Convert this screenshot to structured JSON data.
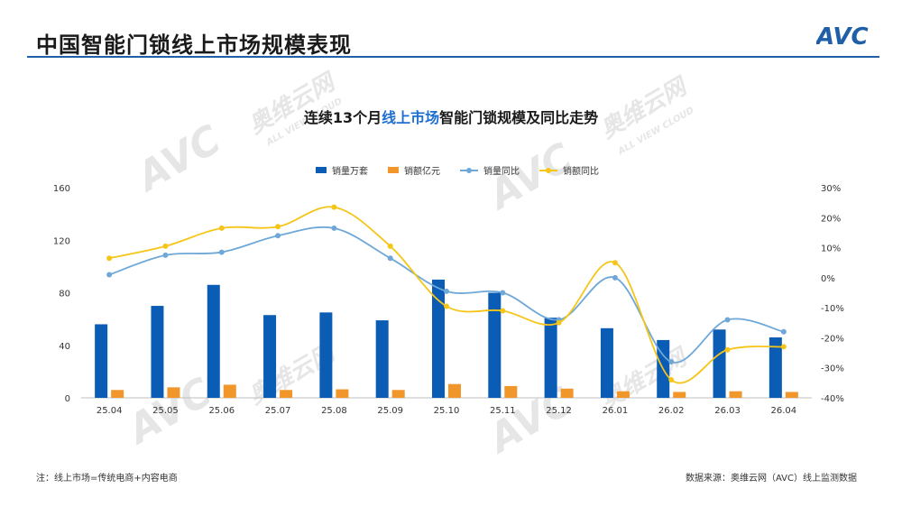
{
  "header": {
    "title": "中国智能门锁线上市场规模表现",
    "logo_text": "AVC"
  },
  "watermark": {
    "brand": "奥维云网",
    "latin": "ALL VIEW CLOUD",
    "logo": "AVC"
  },
  "chart_title": {
    "prefix": "连续13个月",
    "highlight": "线上市场",
    "suffix": "智能门锁规模及同比走势"
  },
  "footnote": "注：线上市场=传统电商+内容电商",
  "source": "数据来源：奥维云网（AVC）线上监测数据",
  "colors": {
    "bar1": "#0b5cb5",
    "bar2": "#f0962a",
    "line1": "#6fa8d8",
    "line2": "#f5c518",
    "accent": "#1f5fa8"
  },
  "chart_data": {
    "type": "bar",
    "categories": [
      "25.04",
      "25.05",
      "25.06",
      "25.07",
      "25.08",
      "25.09",
      "25.10",
      "25.11",
      "25.12",
      "26.01",
      "26.02",
      "26.03",
      "26.04"
    ],
    "series": [
      {
        "name": "销量万套",
        "kind": "bar",
        "axis": "left",
        "values": [
          56,
          70,
          86,
          63,
          65,
          59,
          90,
          80,
          61,
          53,
          44,
          52,
          46
        ]
      },
      {
        "name": "销额亿元",
        "kind": "bar",
        "axis": "left",
        "values": [
          6,
          8,
          10,
          6,
          6.5,
          6,
          10.5,
          9,
          7,
          5,
          4.5,
          5,
          4.5
        ]
      },
      {
        "name": "销量同比",
        "kind": "line",
        "axis": "right",
        "values": [
          1,
          7.5,
          8.5,
          14,
          16.5,
          6.5,
          -4.5,
          -5,
          -14,
          0,
          -28,
          -14,
          -18
        ]
      },
      {
        "name": "销额同比",
        "kind": "line",
        "axis": "right",
        "values": [
          6.5,
          10.5,
          16.5,
          17,
          23.5,
          10.5,
          -9.5,
          -11,
          -15,
          5,
          -34,
          -24,
          -23
        ]
      }
    ],
    "ylim_left": [
      0,
      160
    ],
    "yticks_left": [
      "0",
      "40",
      "80",
      "120",
      "160"
    ],
    "ylim_right": [
      -40,
      30
    ],
    "yticks_right": [
      "-40%",
      "-30%",
      "-20%",
      "-10%",
      "0%",
      "10%",
      "20%",
      "30%"
    ],
    "grid": false,
    "legend": "top-center"
  }
}
